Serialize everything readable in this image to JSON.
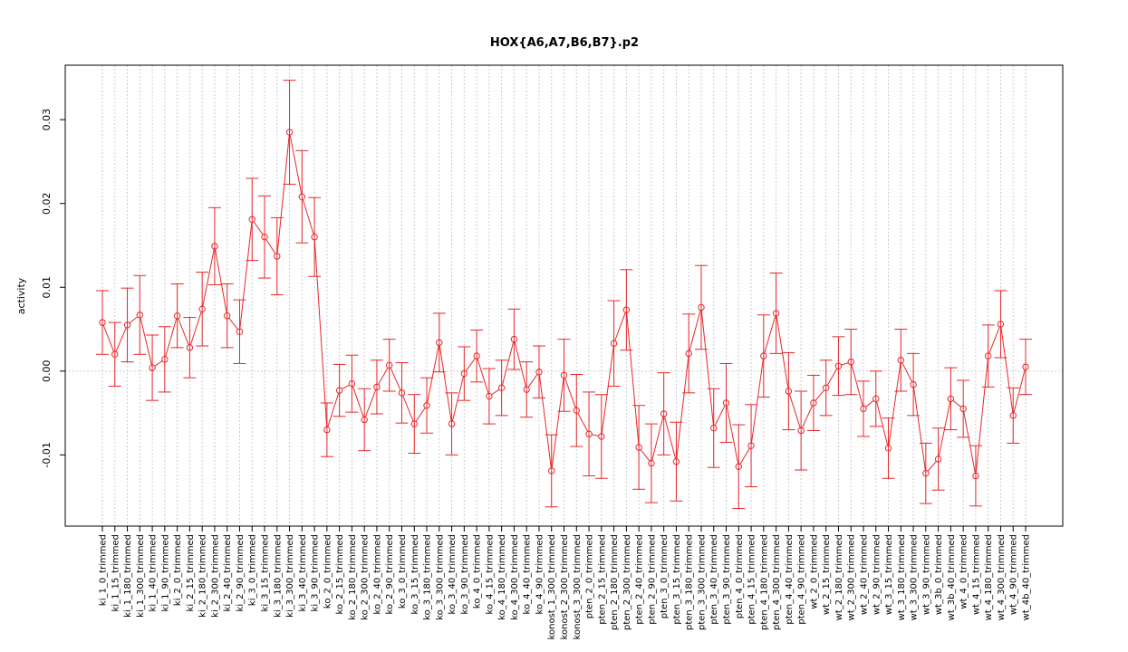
{
  "chart_data": {
    "type": "line",
    "title": "HOX{A6,A7,B6,B7}.p2",
    "xlabel": "",
    "ylabel": "activity",
    "ylim": [
      -0.0185,
      0.0365
    ],
    "yticks": [
      -0.01,
      0.0,
      0.01,
      0.02,
      0.03
    ],
    "ytick_labels": [
      "-0.01",
      "0.00",
      "0.01",
      "0.02",
      "0.03"
    ],
    "grid": true,
    "series_color": "#e8262a",
    "grid_color": "#cccccc",
    "reference_line": 0,
    "categories": [
      "ki_1_0_trimmed",
      "ki_1_15_trimmed",
      "ki_1_180_trimmed",
      "ki_1_300_trimmed",
      "ki_1_40_trimmed",
      "ki_1_90_trimmed",
      "ki_2_0_trimmed",
      "ki_2_15_trimmed",
      "ki_2_180_trimmed",
      "ki_2_300_trimmed",
      "ki_2_40_trimmed",
      "ki_2_90_trimmed",
      "ki_3_0_trimmed",
      "ki_3_15_trimmed",
      "ki_3_180_trimmed",
      "ki_3_300_trimmed",
      "ki_3_40_trimmed",
      "ki_3_90_trimmed",
      "ko_2_0_trimmed",
      "ko_2_15_trimmed",
      "ko_2_180_trimmed",
      "ko_2_300_trimmed",
      "ko_2_40_trimmed",
      "ko_2_90_trimmed",
      "ko_3_0_trimmed",
      "ko_3_15_trimmed",
      "ko_3_180_trimmed",
      "ko_3_300_trimmed",
      "ko_3_40_trimmed",
      "ko_3_90_trimmed",
      "ko_4_0_trimmed",
      "ko_4_15_trimmed",
      "ko_4_180_trimmed",
      "ko_4_300_trimmed",
      "ko_4_40_trimmed",
      "ko_4_90_trimmed",
      "konost_1_300_trimmed",
      "konost_2_300_trimmed",
      "konost_3_300_trimmed",
      "pten_2_0_trimmed",
      "pten_2_15_trimmed",
      "pten_2_180_trimmed",
      "pten_2_300_trimmed",
      "pten_2_40_trimmed",
      "pten_2_90_trimmed",
      "pten_3_0_trimmed",
      "pten_3_15_trimmed",
      "pten_3_180_trimmed",
      "pten_3_300_trimmed",
      "pten_3_40_trimmed",
      "pten_3_90_trimmed",
      "pten_4_0_trimmed",
      "pten_4_15_trimmed",
      "pten_4_180_trimmed",
      "pten_4_300_trimmed",
      "pten_4_40_trimmed",
      "pten_4_90_trimmed",
      "wt_2_0_trimmed",
      "wt_2_15_trimmed",
      "wt_2_180_trimmed",
      "wt_2_300_trimmed",
      "wt_2_40_trimmed",
      "wt_2_90_trimmed",
      "wt_3_15_trimmed",
      "wt_3_180_trimmed",
      "wt_3_300_trimmed",
      "wt_3_90_trimmed",
      "wt_3b_0_trimmed",
      "wt_3b_40_trimmed",
      "wt_4_0_trimmed",
      "wt_4_15_trimmed",
      "wt_4_180_trimmed",
      "wt_4_300_trimmed",
      "wt_4_90_trimmed",
      "wt_4b_40_trimmed"
    ],
    "values": [
      0.0058,
      0.002,
      0.0055,
      0.0067,
      0.0004,
      0.0014,
      0.0066,
      0.0028,
      0.0074,
      0.0149,
      0.0066,
      0.0047,
      0.0181,
      0.016,
      0.0137,
      0.0285,
      0.0208,
      0.016,
      -0.007,
      -0.0023,
      -0.0015,
      -0.0058,
      -0.0019,
      0.0007,
      -0.0026,
      -0.0063,
      -0.0041,
      0.0034,
      -0.0063,
      -0.0003,
      0.0018,
      -0.003,
      -0.002,
      0.0038,
      -0.0022,
      -0.0001,
      -0.0119,
      -0.0005,
      -0.0047,
      -0.0075,
      -0.0078,
      0.0033,
      0.0073,
      -0.0091,
      -0.011,
      -0.0051,
      -0.0108,
      0.0021,
      0.0076,
      -0.0068,
      -0.0038,
      -0.0114,
      -0.0089,
      0.0018,
      0.0069,
      -0.0024,
      -0.0071,
      -0.0038,
      -0.002,
      0.0006,
      0.0011,
      -0.0045,
      -0.0033,
      -0.0092,
      0.0013,
      -0.0016,
      -0.0122,
      -0.0105,
      -0.0033,
      -0.0045,
      -0.0125,
      0.0018,
      0.0056,
      -0.0053,
      0.0005
    ],
    "error": [
      0.0038,
      0.0038,
      0.0044,
      0.0047,
      0.0039,
      0.0039,
      0.0038,
      0.0036,
      0.0044,
      0.0046,
      0.0038,
      0.0038,
      0.0049,
      0.0049,
      0.0046,
      0.0062,
      0.0055,
      0.0047,
      0.0032,
      0.0031,
      0.0034,
      0.0037,
      0.0032,
      0.0031,
      0.0036,
      0.0035,
      0.0033,
      0.0035,
      0.0037,
      0.0032,
      0.0031,
      0.0033,
      0.0033,
      0.0036,
      0.0033,
      0.0031,
      0.0043,
      0.0043,
      0.0043,
      0.005,
      0.005,
      0.0051,
      0.0048,
      0.005,
      0.0047,
      0.0049,
      0.0047,
      0.0047,
      0.005,
      0.0047,
      0.0047,
      0.005,
      0.0049,
      0.0049,
      0.0048,
      0.0046,
      0.0047,
      0.0033,
      0.0033,
      0.0035,
      0.0039,
      0.0033,
      0.0033,
      0.0036,
      0.0037,
      0.0037,
      0.0036,
      0.0037,
      0.0037,
      0.0034,
      0.0036,
      0.0037,
      0.004,
      0.0033,
      0.0033
    ]
  }
}
